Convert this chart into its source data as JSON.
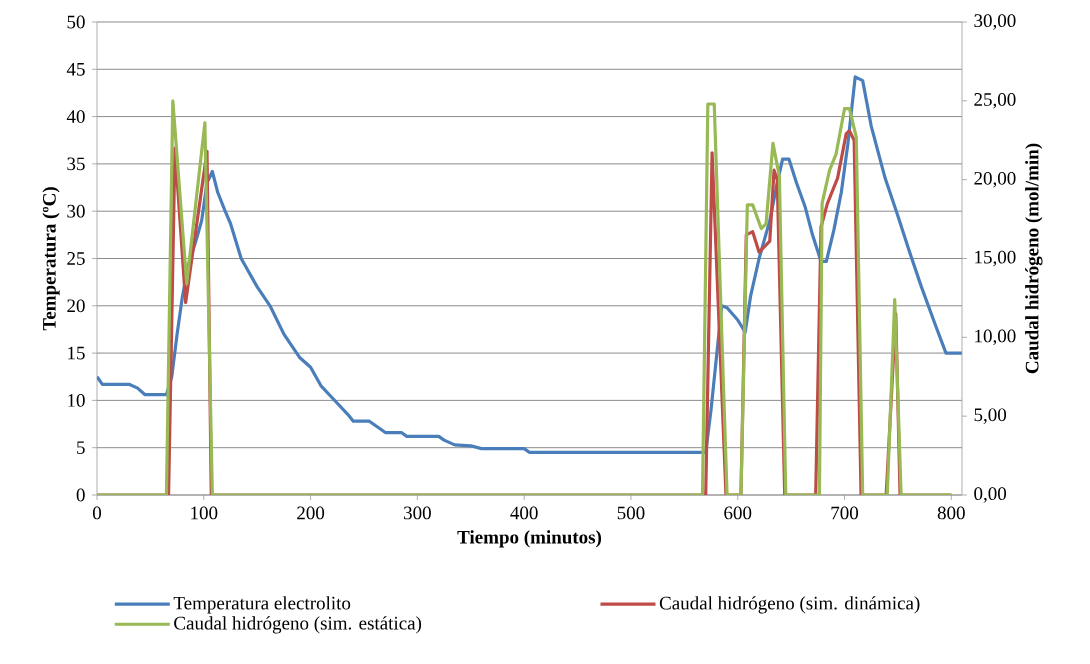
{
  "chart_data": {
    "type": "line",
    "xlabel": "Tiempo (minutos)",
    "ylabel": "Temperatura (ºC)",
    "y2label": "Caudal hidrógeno (mol/min)",
    "xlim": [
      0,
      810
    ],
    "xticks": [
      0,
      100,
      200,
      300,
      400,
      500,
      600,
      700,
      800
    ],
    "ylim": [
      0,
      50
    ],
    "yticks": [
      0,
      5,
      10,
      15,
      20,
      25,
      30,
      35,
      40,
      45,
      50
    ],
    "y2lim": [
      0,
      30
    ],
    "y2ticks": [
      {
        "value": 0,
        "label": "0,00"
      },
      {
        "value": 5,
        "label": "5,00"
      },
      {
        "value": 10,
        "label": "10,00"
      },
      {
        "value": 15,
        "label": "15,00"
      },
      {
        "value": 20,
        "label": "20,00"
      },
      {
        "value": 25,
        "label": "25,00"
      },
      {
        "value": 30,
        "label": "30,00"
      }
    ],
    "grid": "y",
    "legend": "bottom",
    "marker": "none",
    "line_style": "solid",
    "series": [
      {
        "name": "Temperatura  electrolito",
        "color": "#4a7ebb",
        "x": [
          0,
          5,
          30,
          38,
          45,
          65,
          70,
          75,
          80,
          86,
          93,
          98,
          103,
          108,
          113,
          120,
          125,
          135,
          150,
          162,
          175,
          190,
          200,
          210,
          225,
          235,
          240,
          255,
          265,
          270,
          285,
          290,
          320,
          325,
          335,
          350,
          360,
          400,
          405,
          570,
          575,
          580,
          585,
          590,
          600,
          607,
          612,
          620,
          630,
          637,
          642,
          648,
          655,
          663,
          670,
          678,
          683,
          690,
          697,
          703,
          710,
          717,
          725,
          738,
          750,
          760,
          772,
          785,
          795,
          810
        ],
        "values": [
          12.5,
          11.7,
          11.7,
          11.3,
          10.6,
          10.6,
          12.5,
          17,
          21,
          24.5,
          27,
          29,
          33,
          34.2,
          32,
          30,
          28.7,
          25,
          22,
          20,
          17,
          14.5,
          13.5,
          11.5,
          9.7,
          8.5,
          7.8,
          7.8,
          7,
          6.6,
          6.6,
          6.2,
          6.2,
          5.8,
          5.3,
          5.2,
          4.9,
          4.9,
          4.5,
          4.5,
          9,
          14.5,
          20,
          19.8,
          18.5,
          17.2,
          21,
          25,
          29,
          33,
          35.5,
          35.5,
          33,
          30.5,
          27.5,
          24.7,
          24.7,
          28,
          32,
          37,
          44.2,
          43.8,
          39,
          33.5,
          29.5,
          26,
          22,
          18,
          15,
          15
        ]
      },
      {
        "name": "Caudal hidrógeno (sim. dinámica)",
        "color": "#be4b48",
        "axis": "y2",
        "x": [
          0,
          67,
          73,
          83,
          103,
          107,
          570,
          576,
          589,
          603,
          608,
          614,
          620,
          630,
          634,
          637,
          644,
          673,
          678,
          684,
          693.5,
          701.5,
          704.6,
          709,
          715.5,
          739,
          748,
          752,
          800
        ],
        "values": [
          0,
          0,
          22.0,
          12.2,
          21.8,
          0,
          0,
          21.7,
          0,
          0,
          16.5,
          16.7,
          15.4,
          16.1,
          20.6,
          20.0,
          0,
          0,
          17.0,
          18.5,
          20.1,
          22.9,
          23.1,
          22.5,
          0,
          0,
          11.5,
          0,
          0
        ]
      },
      {
        "name": "Caudal hidrógeno (sim. estática)",
        "color": "#98b954",
        "axis": "y2",
        "x": [
          0,
          65,
          71,
          84,
          101,
          108,
          567,
          572,
          578,
          590,
          603,
          609,
          614,
          622,
          626.5,
          633,
          639,
          645,
          676.5,
          679,
          686,
          692,
          700,
          704.6,
          711,
          717,
          740,
          747,
          753,
          800
        ],
        "values": [
          0,
          0,
          25.0,
          13.4,
          23.6,
          0,
          0,
          24.8,
          24.8,
          0,
          0,
          18.4,
          18.4,
          16.9,
          17.2,
          22.3,
          20.2,
          0,
          0,
          18.5,
          20.6,
          21.6,
          24.5,
          24.5,
          22.7,
          0,
          0,
          12.4,
          0,
          0
        ]
      }
    ]
  }
}
